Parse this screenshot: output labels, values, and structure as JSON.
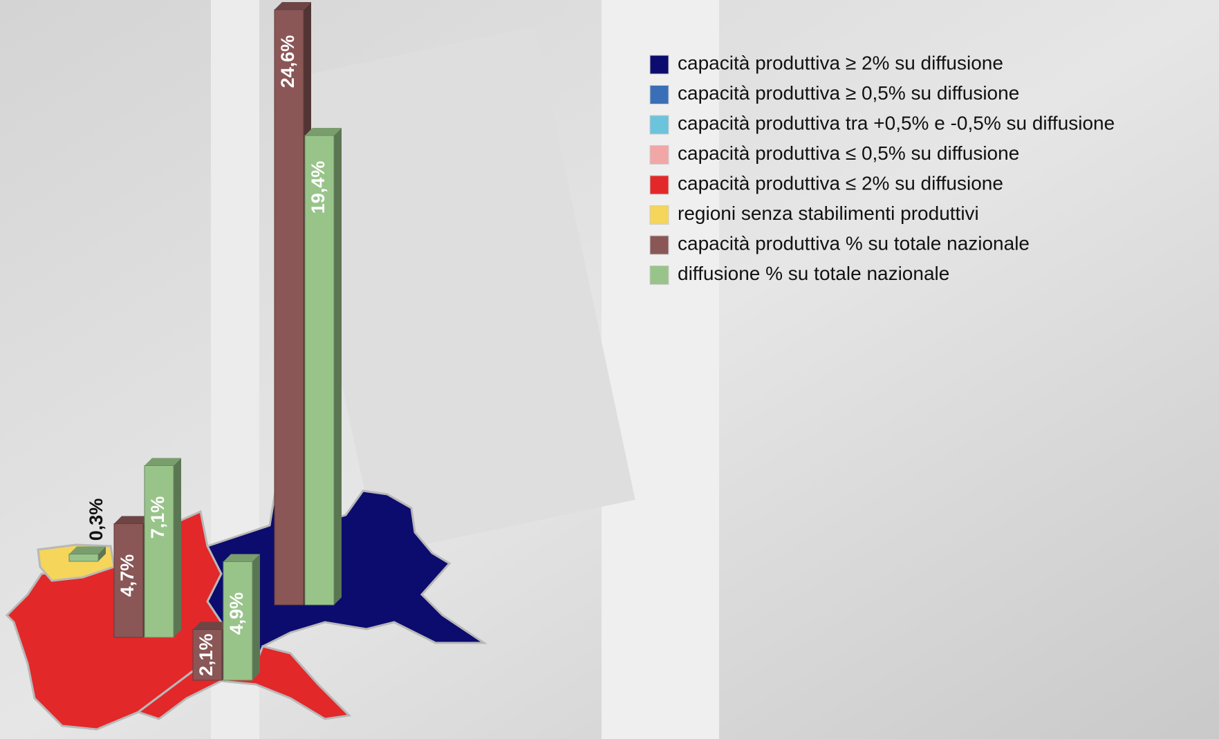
{
  "chart_data": {
    "type": "bar",
    "categories": [
      null,
      null,
      null,
      null
    ],
    "map_legend": [
      {
        "name": "capacità produttiva ≥ 2% su diffusione",
        "color": "#0c0c6e"
      },
      {
        "name": "capacità produttiva ≥ 0,5% su diffusione",
        "color": "#3a6fb8"
      },
      {
        "name": "capacità produttiva tra +0,5% e -0,5% su diffusione",
        "color": "#6cc3dc"
      },
      {
        "name": "capacità produttiva ≤ 0,5% su diffusione",
        "color": "#f2a7a7"
      },
      {
        "name": "capacità produttiva ≤ 2% su diffusione",
        "color": "#e3282a"
      },
      {
        "name": "regioni senza stabilimenti produttivi",
        "color": "#f5d55a"
      }
    ],
    "series": [
      {
        "name": "capacità produttiva % su totale nazionale",
        "color": "#8a5656",
        "values": [
          null,
          4.7,
          24.6,
          2.1
        ],
        "value_labels": [
          null,
          "4,7%",
          "24,6%",
          "2,1%"
        ]
      },
      {
        "name": "diffusione % su totale nazionale",
        "color": "#98c48a",
        "values": [
          0.3,
          7.1,
          19.4,
          4.9
        ],
        "value_labels": [
          "0,3%",
          "7,1%",
          "19,4%",
          "4,9%"
        ]
      }
    ]
  }
}
